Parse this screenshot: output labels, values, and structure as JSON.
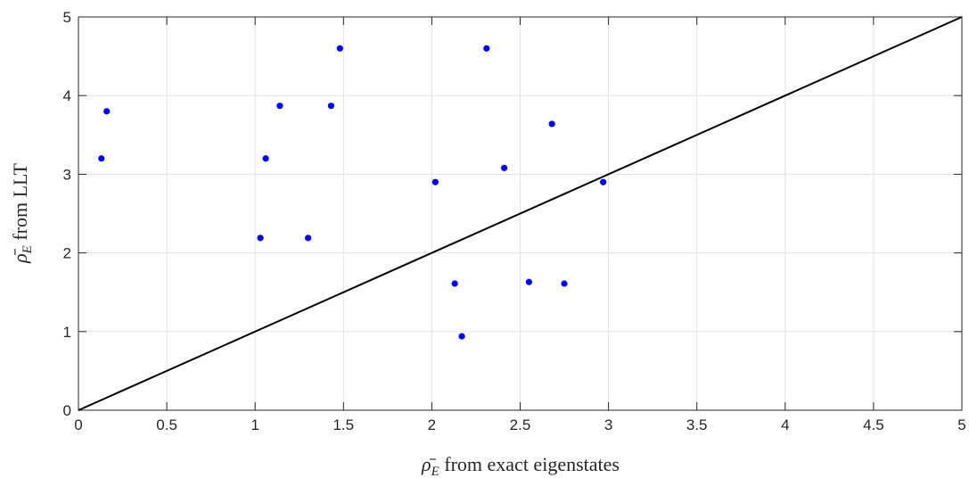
{
  "chart_data": {
    "type": "scatter",
    "title": "",
    "xlabel": {
      "symbol": "ρ̄",
      "subscript": "E",
      "text": " from exact eigenstates"
    },
    "ylabel": {
      "symbol": "ρ̄",
      "subscript": "E",
      "text": " from LLT"
    },
    "xlim": [
      0,
      5
    ],
    "ylim": [
      0,
      5
    ],
    "x_ticks": [
      "0",
      "0.5",
      "1",
      "1.5",
      "2",
      "2.5",
      "3",
      "3.5",
      "4",
      "4.5",
      "5"
    ],
    "y_ticks": [
      "0",
      "1",
      "2",
      "3",
      "4",
      "5"
    ],
    "grid": true,
    "series": [
      {
        "marker_color": "#0000ff",
        "points": [
          [
            0.13,
            3.2
          ],
          [
            0.16,
            3.8
          ],
          [
            1.03,
            2.19
          ],
          [
            1.06,
            3.2
          ],
          [
            1.14,
            3.87
          ],
          [
            1.3,
            2.19
          ],
          [
            1.43,
            3.87
          ],
          [
            1.48,
            4.6
          ],
          [
            2.02,
            2.9
          ],
          [
            2.13,
            1.61
          ],
          [
            2.17,
            0.94
          ],
          [
            2.31,
            4.6
          ],
          [
            2.41,
            3.08
          ],
          [
            2.55,
            1.63
          ],
          [
            2.68,
            3.64
          ],
          [
            2.75,
            1.61
          ],
          [
            2.97,
            2.9
          ]
        ]
      }
    ],
    "reference_line": {
      "from": [
        0,
        0
      ],
      "to": [
        5,
        5
      ],
      "color": "#000000"
    }
  }
}
